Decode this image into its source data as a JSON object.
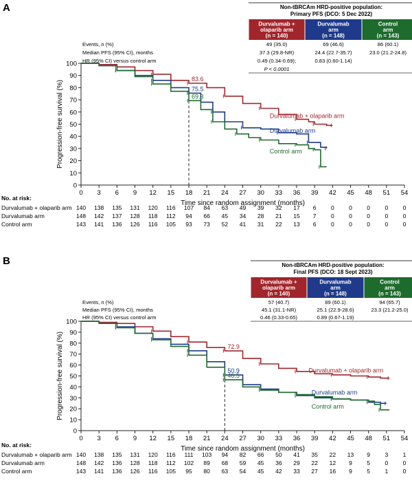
{
  "chart_data": [
    {
      "type": "line",
      "panel_label": "A",
      "title": "Non-tBRCAm HRD-positive population:",
      "subtitle": "Primary PFS (DCO: 5 Dec 2022)",
      "xlabel": "Time since random assignment (months)",
      "ylabel": "Progression-free survival (%)",
      "xlim": [
        0,
        54
      ],
      "ylim": [
        0,
        100
      ],
      "xticks": [
        0,
        3,
        6,
        9,
        12,
        15,
        18,
        21,
        24,
        27,
        30,
        33,
        36,
        39,
        42,
        45,
        48,
        51,
        54
      ],
      "yticks": [
        0,
        10,
        20,
        30,
        40,
        50,
        60,
        70,
        80,
        90,
        100
      ],
      "table": {
        "headers": [
          {
            "name": "Durvalumab + olaparib arm",
            "n": "(n = 140)",
            "color": "#a0262c"
          },
          {
            "name": "Durvalumab arm",
            "n": "(n = 148)",
            "color": "#1f3a8a"
          },
          {
            "name": "Control arm",
            "n": "(n = 143)",
            "color": "#1e6b2e"
          }
        ],
        "rows": [
          {
            "label": "Events, n (%)",
            "values": [
              "49 (35.0)",
              "69 (46.6)",
              "86 (60.1)"
            ]
          },
          {
            "label": "Median PFS (95% CI), months",
            "values": [
              "37.3 (29.8-NR)",
              "24.4 (22.7-35.7)",
              "23.0 (21.2-24.8)"
            ]
          },
          {
            "label": "HR (95% CI) versus control arm",
            "values": [
              "0.49 (0.34-0.69);",
              "0.83 (0.60-1.14)",
              ""
            ]
          },
          {
            "label": "",
            "values": [
              "P < 0.0001",
              "",
              ""
            ]
          }
        ]
      },
      "landmark": {
        "x": 18,
        "labels": [
          {
            "text": "83.6",
            "series": 0,
            "y": 83.6
          },
          {
            "text": "75.5",
            "series": 1,
            "y": 75.5
          },
          {
            "text": "69.3",
            "series": 2,
            "y": 69.3
          }
        ]
      },
      "series": [
        {
          "name": "Durvalumab + olaparib arm",
          "color": "#a0262c",
          "points": [
            [
              0,
              100
            ],
            [
              3,
              99
            ],
            [
              6,
              97
            ],
            [
              9,
              94
            ],
            [
              12,
              91
            ],
            [
              15,
              86
            ],
            [
              18,
              83.6
            ],
            [
              21,
              80
            ],
            [
              24,
              73
            ],
            [
              27,
              67
            ],
            [
              30,
              63
            ],
            [
              33,
              58
            ],
            [
              36,
              54
            ],
            [
              38,
              52
            ],
            [
              39,
              50
            ],
            [
              41,
              49
            ],
            [
              42,
              49
            ]
          ]
        },
        {
          "name": "Durvalumab arm",
          "color": "#1f3a8a",
          "points": [
            [
              0,
              100
            ],
            [
              3,
              98
            ],
            [
              6,
              94
            ],
            [
              9,
              90
            ],
            [
              12,
              86
            ],
            [
              15,
              80
            ],
            [
              18,
              75.5
            ],
            [
              20,
              68
            ],
            [
              22,
              60
            ],
            [
              24,
              52
            ],
            [
              27,
              47
            ],
            [
              30,
              46
            ],
            [
              33,
              43
            ],
            [
              36,
              42
            ],
            [
              38,
              35
            ],
            [
              40,
              31
            ],
            [
              41,
              30
            ]
          ]
        },
        {
          "name": "Control arm",
          "color": "#1e6b2e",
          "points": [
            [
              0,
              100
            ],
            [
              3,
              98
            ],
            [
              6,
              94
            ],
            [
              9,
              89
            ],
            [
              12,
              83
            ],
            [
              15,
              77
            ],
            [
              18,
              69.3
            ],
            [
              20,
              62
            ],
            [
              22,
              52
            ],
            [
              24,
              46
            ],
            [
              26,
              42
            ],
            [
              28,
              39
            ],
            [
              30,
              37
            ],
            [
              33,
              34
            ],
            [
              36,
              33
            ],
            [
              38,
              30
            ],
            [
              39,
              29
            ],
            [
              40,
              22
            ],
            [
              40,
              15
            ],
            [
              41,
              15
            ]
          ]
        }
      ],
      "series_labels": [
        {
          "text": "Durvalumab + olaparib arm",
          "series": 0,
          "x": 31.5,
          "y": 55
        },
        {
          "text": "Durvalumab arm",
          "series": 1,
          "x": 31.5,
          "y": 43
        },
        {
          "text": "Control arm",
          "series": 2,
          "x": 31.5,
          "y": 26
        }
      ],
      "at_risk": {
        "heading": "No. at risk:",
        "rows": [
          {
            "label": "Durvalumab + olaparib arm",
            "values": [
              "140",
              "138",
              "135",
              "131",
              "120",
              "116",
              "107",
              "84",
              "63",
              "49",
              "39",
              "32",
              "17",
              "6",
              "0",
              "0",
              "0",
              "0",
              "0"
            ]
          },
          {
            "label": "Durvalumab arm",
            "values": [
              "148",
              "142",
              "137",
              "128",
              "118",
              "112",
              "94",
              "66",
              "45",
              "34",
              "28",
              "21",
              "15",
              "7",
              "0",
              "0",
              "0",
              "0",
              "0"
            ]
          },
          {
            "label": "Control arm",
            "values": [
              "143",
              "141",
              "136",
              "126",
              "116",
              "105",
              "93",
              "73",
              "52",
              "41",
              "31",
              "22",
              "13",
              "6",
              "0",
              "0",
              "0",
              "0",
              "0"
            ]
          }
        ]
      }
    },
    {
      "type": "line",
      "panel_label": "B",
      "title": "Non-tBRCAm HRD-positive population:",
      "subtitle": "Final PFS (DCO: 18 Sept 2023)",
      "xlabel": "Time since random assignment (months)",
      "ylabel": "Progression-free survival (%)",
      "xlim": [
        0,
        54
      ],
      "ylim": [
        0,
        100
      ],
      "xticks": [
        0,
        3,
        6,
        9,
        12,
        15,
        18,
        21,
        24,
        27,
        30,
        33,
        36,
        39,
        42,
        45,
        48,
        51,
        54
      ],
      "yticks": [
        0,
        10,
        20,
        30,
        40,
        50,
        60,
        70,
        80,
        90,
        100
      ],
      "table": {
        "headers": [
          {
            "name": "Durvalumab + olaparib arm",
            "n": "(n = 140)",
            "color": "#a0262c"
          },
          {
            "name": "Durvalumab arm",
            "n": "(n = 148)",
            "color": "#1f3a8a"
          },
          {
            "name": "Control arm",
            "n": "(n = 143)",
            "color": "#1e6b2e"
          }
        ],
        "rows": [
          {
            "label": "Events, n (%)",
            "values": [
              "57 (40.7)",
              "89 (60.1)",
              "94 (65.7)"
            ]
          },
          {
            "label": "Median PFS (95% CI), months",
            "values": [
              "45.1 (31.1-NR)",
              "25.1 (22.9-28.6)",
              "23.3 (21.2-25.0)"
            ]
          },
          {
            "label": "HR (95% CI) versus control arm",
            "values": [
              "0.46 (0.33-0.65)",
              "0.89 (0.67-1.19)",
              ""
            ]
          }
        ]
      },
      "landmark": {
        "x": 24,
        "labels": [
          {
            "text": "72.9",
            "series": 0,
            "y": 72.9
          },
          {
            "text": "50.9",
            "series": 1,
            "y": 50.9
          },
          {
            "text": "46.5",
            "series": 2,
            "y": 46.5
          }
        ]
      },
      "series": [
        {
          "name": "Durvalumab + olaparib arm",
          "color": "#a0262c",
          "points": [
            [
              0,
              100
            ],
            [
              3,
              99
            ],
            [
              6,
              98
            ],
            [
              9,
              95
            ],
            [
              12,
              91
            ],
            [
              15,
              86
            ],
            [
              18,
              81
            ],
            [
              21,
              76
            ],
            [
              24,
              72.9
            ],
            [
              27,
              66
            ],
            [
              30,
              61
            ],
            [
              33,
              57
            ],
            [
              36,
              54
            ],
            [
              39,
              52
            ],
            [
              42,
              51
            ],
            [
              45,
              50
            ],
            [
              48,
              49
            ],
            [
              50,
              48
            ],
            [
              51.5,
              48
            ]
          ]
        },
        {
          "name": "Durvalumab arm",
          "color": "#1f3a8a",
          "points": [
            [
              0,
              100
            ],
            [
              3,
              98
            ],
            [
              6,
              95
            ],
            [
              9,
              89
            ],
            [
              12,
              84
            ],
            [
              15,
              79
            ],
            [
              18,
              73
            ],
            [
              21,
              63
            ],
            [
              24,
              50.9
            ],
            [
              27,
              42
            ],
            [
              30,
              38
            ],
            [
              33,
              35
            ],
            [
              36,
              32
            ],
            [
              39,
              30
            ],
            [
              42,
              29
            ],
            [
              45,
              28
            ],
            [
              48,
              26
            ],
            [
              50,
              25
            ],
            [
              51,
              25
            ]
          ]
        },
        {
          "name": "Control arm",
          "color": "#1e6b2e",
          "points": [
            [
              0,
              100
            ],
            [
              3,
              98
            ],
            [
              6,
              94
            ],
            [
              9,
              89
            ],
            [
              12,
              83
            ],
            [
              15,
              77
            ],
            [
              18,
              69
            ],
            [
              21,
              58
            ],
            [
              24,
              46.5
            ],
            [
              27,
              40
            ],
            [
              30,
              37
            ],
            [
              33,
              35
            ],
            [
              36,
              33
            ],
            [
              39,
              31
            ],
            [
              42,
              29
            ],
            [
              45,
              28
            ],
            [
              48,
              27
            ],
            [
              49,
              24
            ],
            [
              50,
              19
            ],
            [
              51.5,
              19
            ]
          ]
        }
      ],
      "series_labels": [
        {
          "text": "Durvalumab + olaparib arm",
          "series": 0,
          "x": 38,
          "y": 53
        },
        {
          "text": "Durvalumab arm",
          "series": 1,
          "x": 38.5,
          "y": 33
        },
        {
          "text": "Control arm",
          "series": 2,
          "x": 38.5,
          "y": 20
        }
      ],
      "at_risk": {
        "heading": "No. at risk:",
        "rows": [
          {
            "label": "Durvalumab + olaparib arm",
            "values": [
              "140",
              "138",
              "135",
              "131",
              "120",
              "116",
              "111",
              "103",
              "94",
              "82",
              "66",
              "50",
              "41",
              "35",
              "22",
              "13",
              "9",
              "3",
              "1"
            ]
          },
          {
            "label": "Durvalumab arm",
            "values": [
              "148",
              "142",
              "136",
              "128",
              "118",
              "112",
              "102",
              "89",
              "68",
              "59",
              "45",
              "36",
              "29",
              "22",
              "12",
              "9",
              "5",
              "0",
              "0"
            ]
          },
          {
            "label": "Control arm",
            "values": [
              "143",
              "141",
              "136",
              "126",
              "116",
              "105",
              "95",
              "80",
              "63",
              "54",
              "45",
              "42",
              "33",
              "27",
              "16",
              "9",
              "5",
              "1",
              "0"
            ]
          }
        ]
      }
    }
  ]
}
